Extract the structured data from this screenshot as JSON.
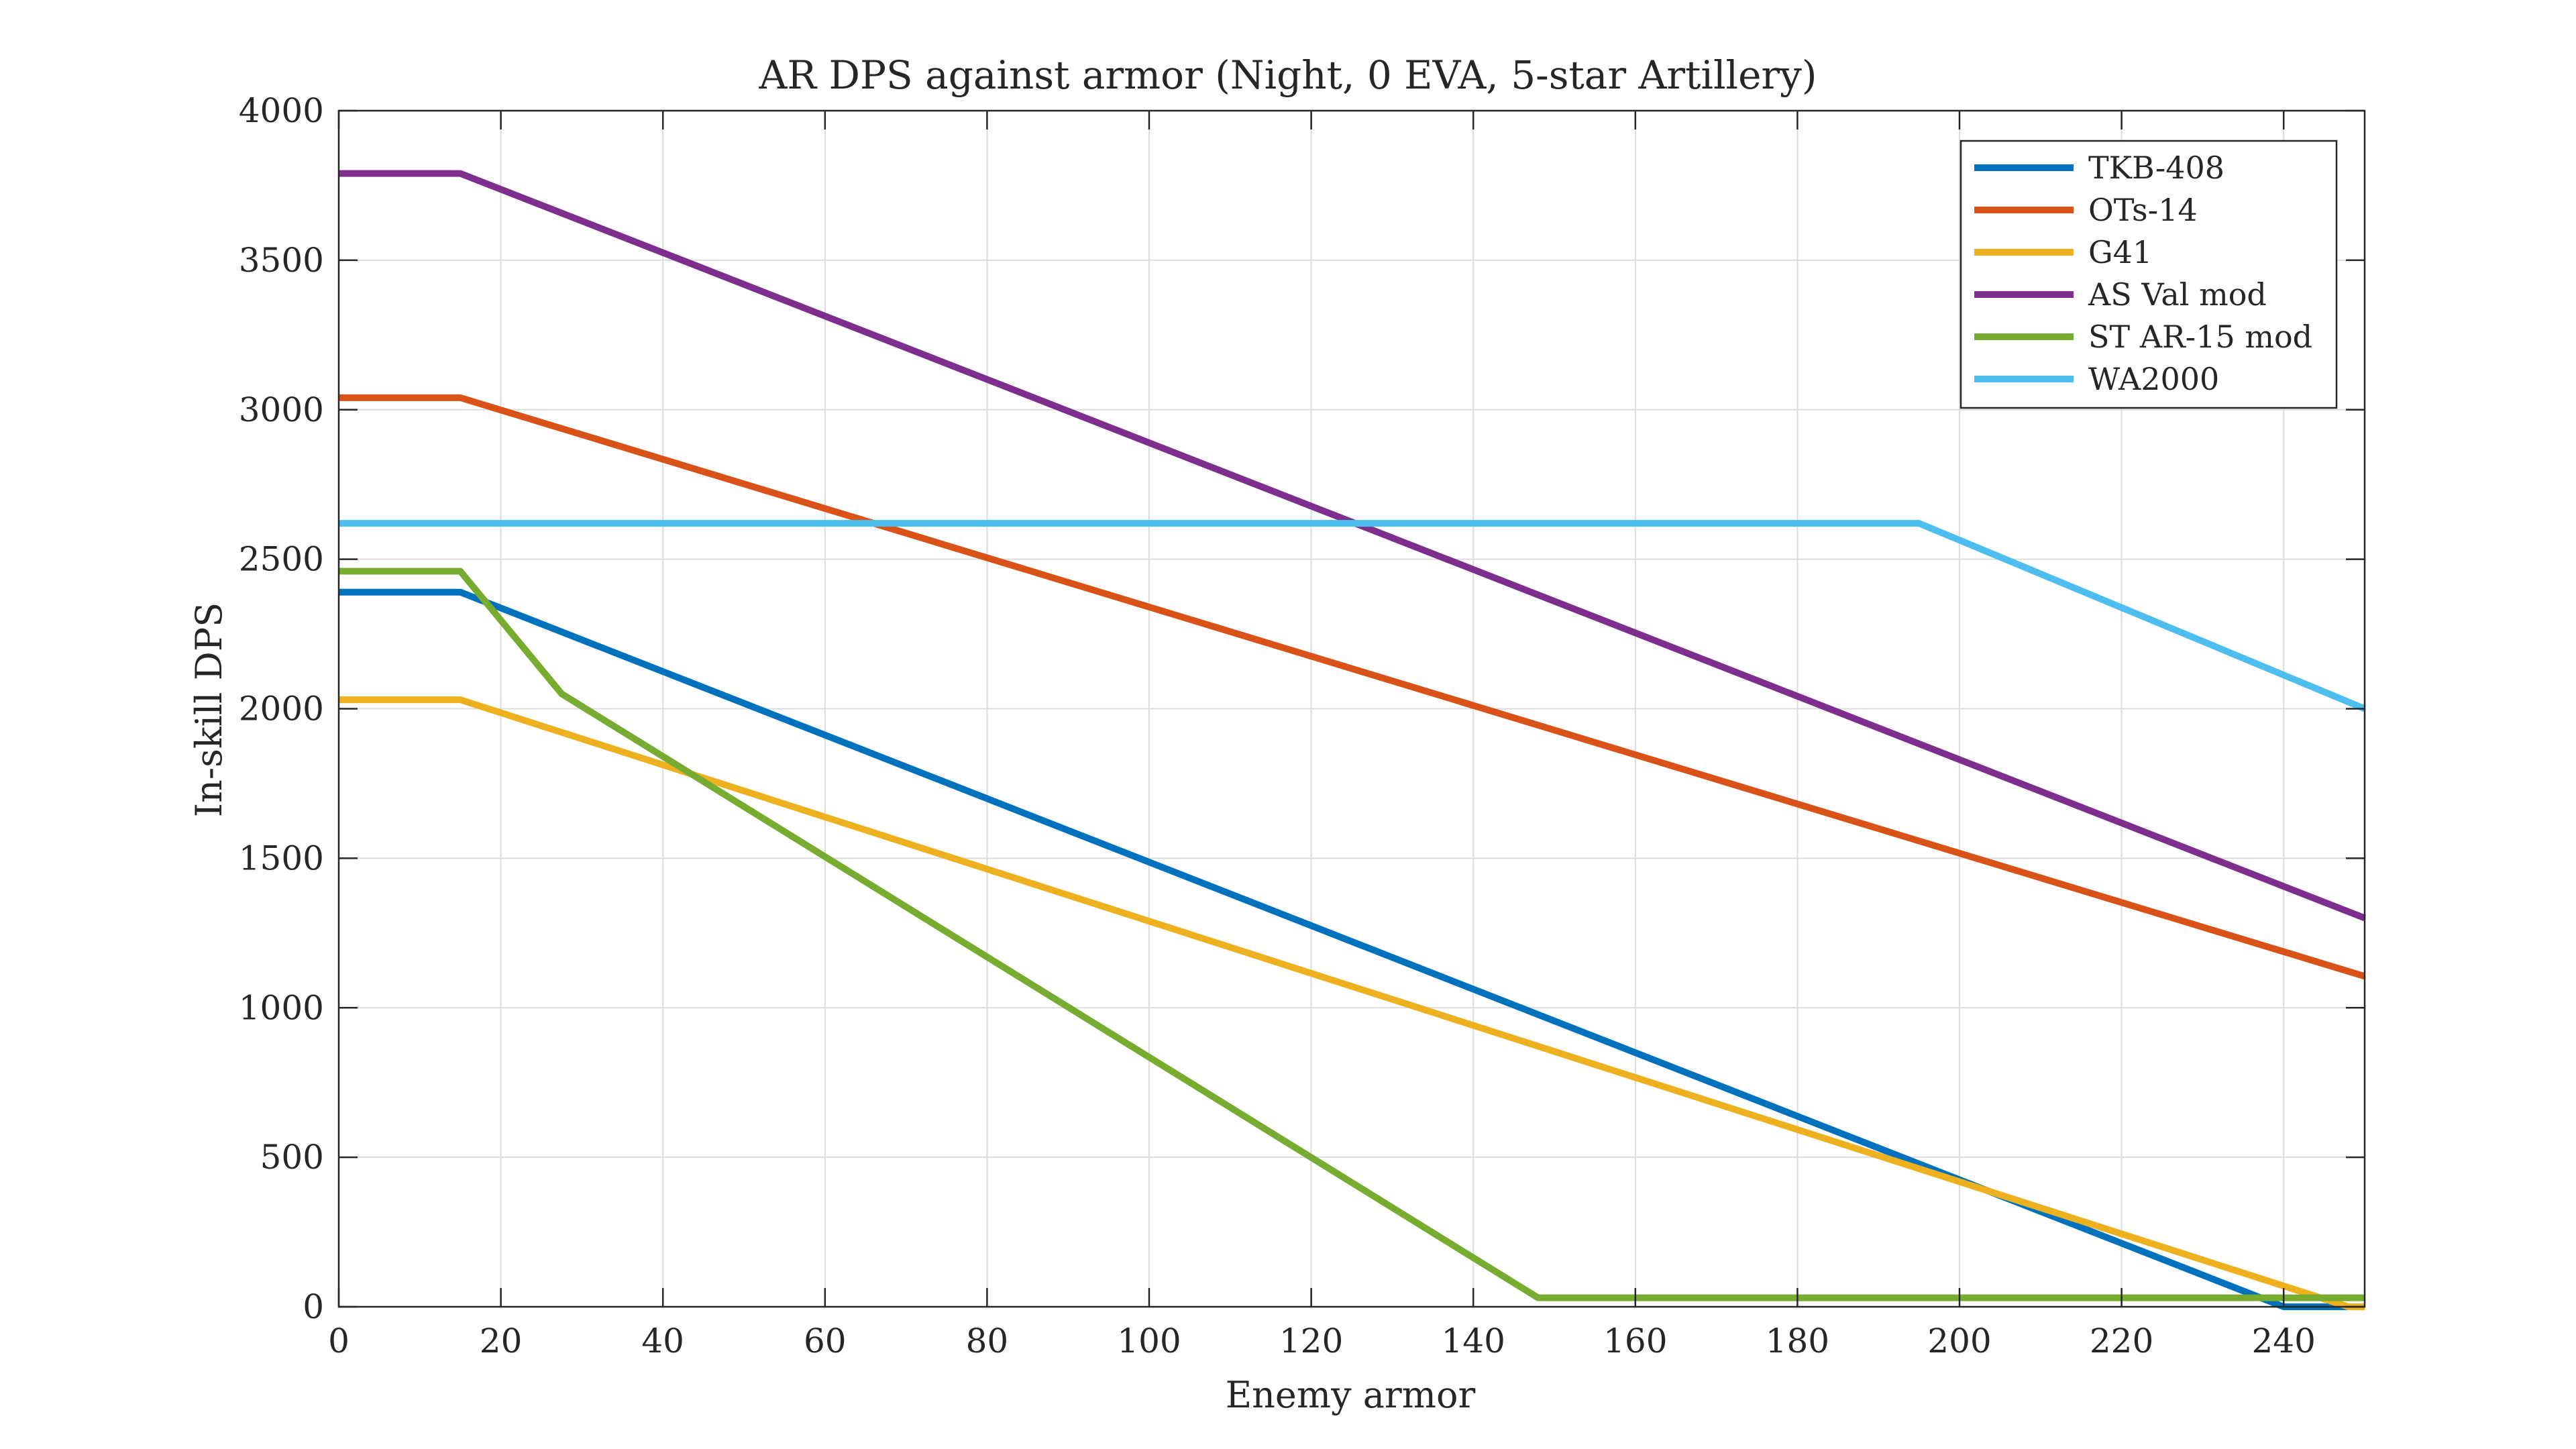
{
  "chart_data": {
    "type": "line",
    "title": "AR DPS against armor (Night, 0 EVA, 5-star Artillery)",
    "xlabel": "Enemy armor",
    "ylabel": "In-skill DPS",
    "xlim": [
      0,
      250
    ],
    "ylim": [
      0,
      4000
    ],
    "xticks": [
      0,
      20,
      40,
      60,
      80,
      100,
      120,
      140,
      160,
      180,
      200,
      220,
      240
    ],
    "yticks": [
      0,
      500,
      1000,
      1500,
      2000,
      2500,
      3000,
      3500,
      4000
    ],
    "grid": true,
    "legend_position": "top-right",
    "series": [
      {
        "name": "TKB-408",
        "color": "#0072BD",
        "x": [
          0,
          15,
          240,
          250
        ],
        "y": [
          2390,
          2390,
          0,
          0
        ]
      },
      {
        "name": "OTs-14",
        "color": "#D95319",
        "x": [
          0,
          15,
          250
        ],
        "y": [
          3040,
          3040,
          1105
        ]
      },
      {
        "name": "G41",
        "color": "#EDB120",
        "x": [
          0,
          15,
          248,
          250
        ],
        "y": [
          2030,
          2030,
          0,
          0
        ]
      },
      {
        "name": "AS Val mod",
        "color": "#7E2F8E",
        "x": [
          0,
          15,
          250
        ],
        "y": [
          3790,
          3790,
          1300
        ]
      },
      {
        "name": "ST AR-15 mod",
        "color": "#77AC30",
        "x": [
          0,
          15,
          27.5,
          148,
          250
        ],
        "y": [
          2460,
          2460,
          2050,
          30,
          30
        ]
      },
      {
        "name": "WA2000",
        "color": "#4DBEEE",
        "x": [
          0,
          195,
          250
        ],
        "y": [
          2620,
          2620,
          2000
        ]
      }
    ]
  }
}
